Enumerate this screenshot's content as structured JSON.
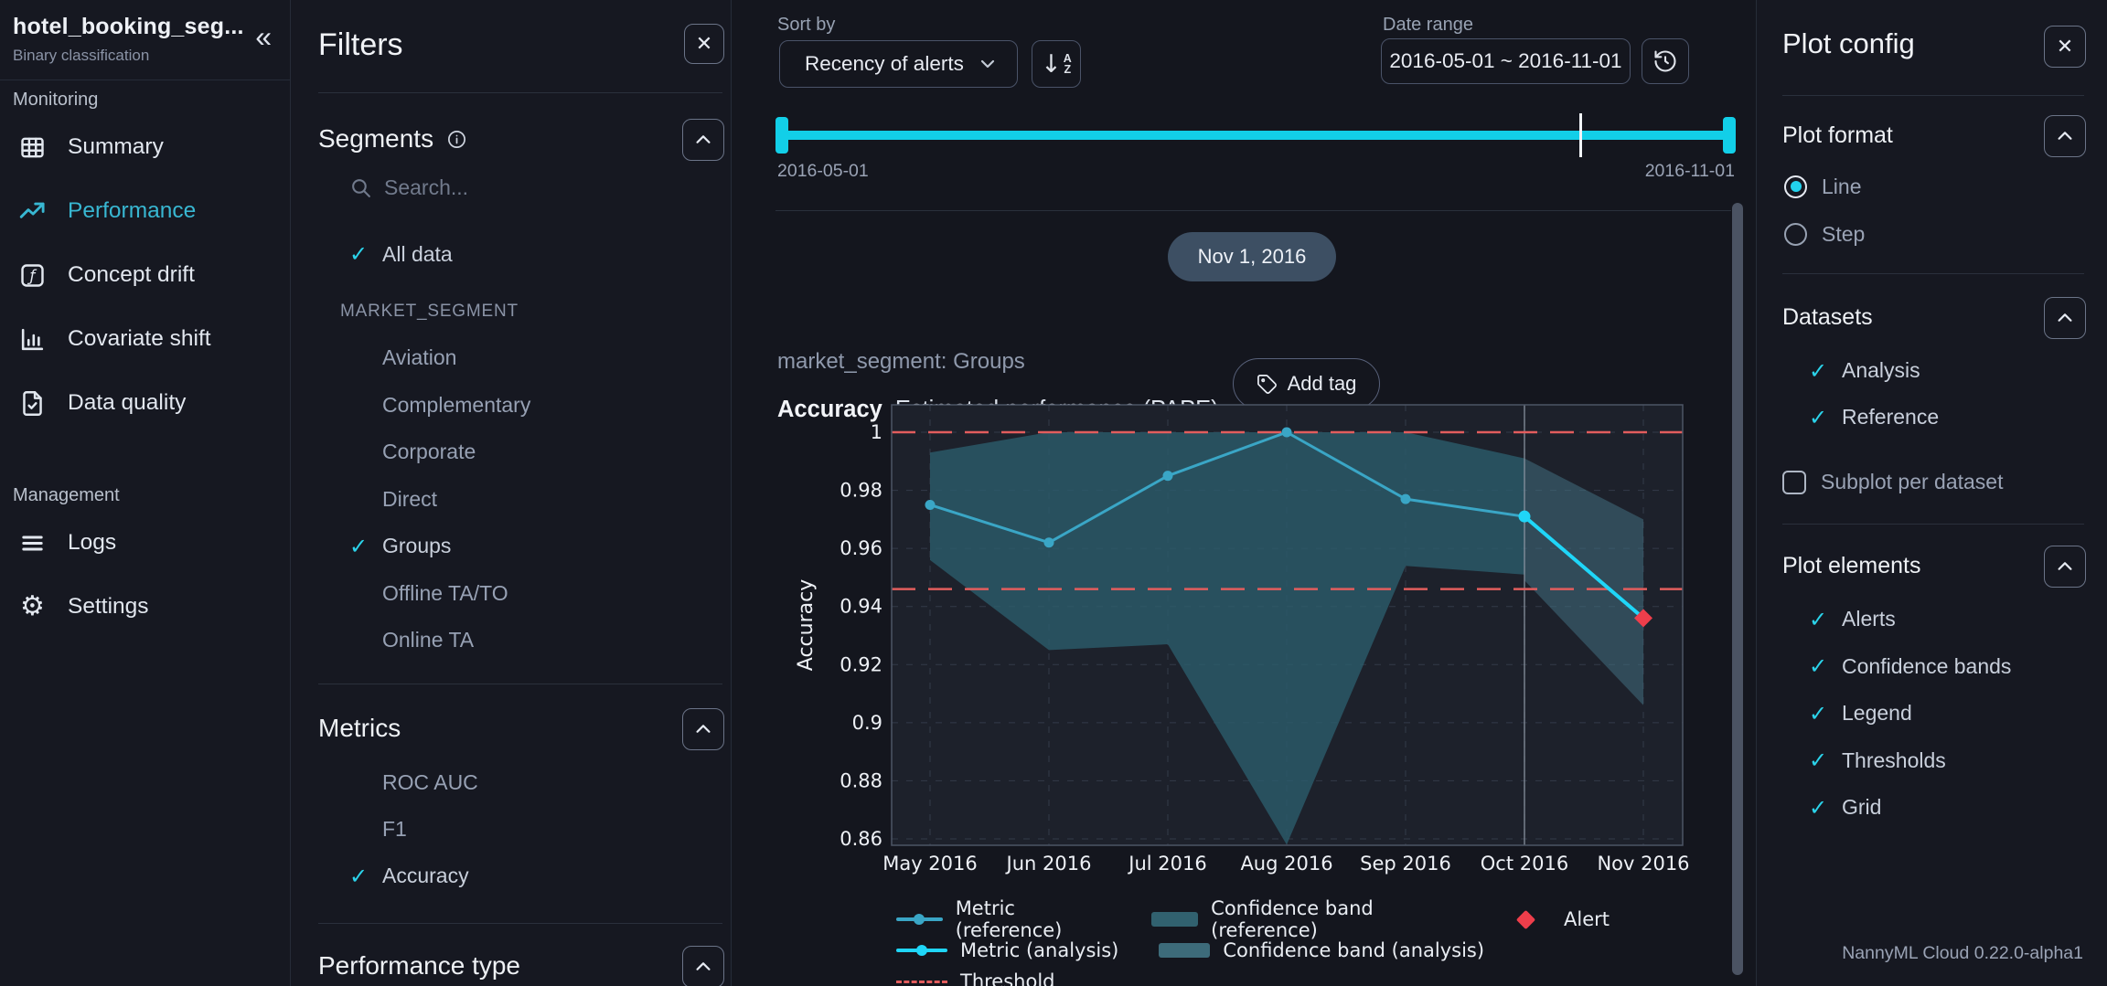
{
  "icons": {
    "close": "✕",
    "collapse_sidebar": "«",
    "check": "✓",
    "gear": "⚙",
    "sort_arrow": "↓",
    "sort_top": "A",
    "sort_bottom": "Z"
  },
  "sidebar": {
    "model_name": "hotel_booking_seg...",
    "model_type": "Binary classification",
    "sections": [
      {
        "label": "Monitoring",
        "items": [
          {
            "label": "Summary",
            "icon": "table-icon",
            "active": false
          },
          {
            "label": "Performance",
            "icon": "trend-up-icon",
            "active": true
          },
          {
            "label": "Concept drift",
            "icon": "function-icon",
            "active": false
          },
          {
            "label": "Covariate shift",
            "icon": "bar-chart-icon",
            "active": false
          },
          {
            "label": "Data quality",
            "icon": "document-check-icon",
            "active": false
          }
        ]
      },
      {
        "label": "Management",
        "items": [
          {
            "label": "Logs",
            "icon": "list-lines-icon",
            "active": false
          },
          {
            "label": "Settings",
            "icon": "gear-icon",
            "active": false
          }
        ]
      }
    ]
  },
  "filters": {
    "title": "Filters",
    "segments": {
      "heading": "Segments",
      "search_placeholder": "Search...",
      "all_data_label": "All data",
      "all_data_checked": true,
      "group_label": "MARKET_SEGMENT",
      "options": [
        {
          "label": "Aviation",
          "checked": false
        },
        {
          "label": "Complementary",
          "checked": false
        },
        {
          "label": "Corporate",
          "checked": false
        },
        {
          "label": "Direct",
          "checked": false
        },
        {
          "label": "Groups",
          "checked": true
        },
        {
          "label": "Offline TA/TO",
          "checked": false
        },
        {
          "label": "Online TA",
          "checked": false
        }
      ]
    },
    "metrics": {
      "heading": "Metrics",
      "options": [
        {
          "label": "ROC AUC",
          "checked": false
        },
        {
          "label": "F1",
          "checked": false
        },
        {
          "label": "Accuracy",
          "checked": true
        }
      ]
    },
    "performance_type_heading": "Performance type"
  },
  "toolbar": {
    "sort_by_label": "Sort by",
    "sort_value": "Recency of alerts",
    "date_range_label": "Date range",
    "date_range_value": "2016-05-01 ~ 2016-11-01",
    "slider_start_label": "2016-05-01",
    "slider_end_label": "2016-11-01"
  },
  "plot_card": {
    "date_badge": "Nov 1, 2016",
    "segment_label": "market_segment: Groups",
    "metric_name": "Accuracy",
    "metric_subtitle": "Estimated performance (PAPE)",
    "add_tag_label": "Add tag"
  },
  "chart_data": {
    "type": "line",
    "ylabel": "Accuracy",
    "x_ticklabels": [
      "May 2016",
      "Jun 2016",
      "Jul 2016",
      "Aug 2016",
      "Sep 2016",
      "Oct 2016",
      "Nov 2016"
    ],
    "y_ticks": [
      1,
      0.98,
      0.96,
      0.94,
      0.92,
      0.9,
      0.88,
      0.86
    ],
    "ylim": [
      0.857,
      1.009
    ],
    "grid": true,
    "reference_analysis_split_index": 5,
    "series": [
      {
        "name": "Metric (reference)",
        "x": [
          0,
          1,
          2,
          3,
          4,
          5
        ],
        "values": [
          0.975,
          0.962,
          0.985,
          1.0,
          0.977,
          0.971
        ],
        "color": "#3aa6c6"
      },
      {
        "name": "Metric (analysis)",
        "x": [
          5,
          6
        ],
        "values": [
          0.971,
          0.936
        ],
        "color": "#1fd6f8"
      }
    ],
    "bands": [
      {
        "name": "Confidence band (reference)",
        "x": [
          0,
          1,
          2,
          3,
          4,
          5
        ],
        "upper": [
          0.993,
          1.0,
          1.0,
          1.0,
          1.0,
          0.991
        ],
        "lower": [
          0.956,
          0.925,
          0.927,
          0.858,
          0.954,
          0.951
        ],
        "color": "#2c5d6b",
        "opacity": 0.8
      },
      {
        "name": "Confidence band (analysis)",
        "x": [
          5,
          6
        ],
        "upper": [
          0.991,
          0.97
        ],
        "lower": [
          0.949,
          0.906
        ],
        "color": "#41707f",
        "opacity": 0.55
      }
    ],
    "thresholds": [
      1.0,
      0.946
    ],
    "threshold_color": "#e25d5d",
    "alerts": [
      {
        "x": 6,
        "value": 0.936
      }
    ],
    "alert_color": "#ee3e4b",
    "legend": [
      {
        "label": "Metric (reference)",
        "kind": "line",
        "color": "#3aa6c6",
        "row": 0
      },
      {
        "label": "Confidence band (reference)",
        "kind": "band",
        "color": "#31616f",
        "row": 0
      },
      {
        "label": "Alert",
        "kind": "alert",
        "color": "#ee3e4b",
        "row": 0
      },
      {
        "label": "Metric (analysis)",
        "kind": "line",
        "color": "#1fd6f8",
        "row": 1
      },
      {
        "label": "Confidence band (analysis)",
        "kind": "band",
        "color": "#3d6b7a",
        "row": 1
      },
      {
        "label": "Threshold",
        "kind": "threshold",
        "color": "#e25d5d",
        "row": 2
      }
    ]
  },
  "plot_config": {
    "title": "Plot config",
    "plot_format": {
      "heading": "Plot format",
      "options": [
        {
          "label": "Line",
          "selected": true
        },
        {
          "label": "Step",
          "selected": false
        }
      ]
    },
    "datasets": {
      "heading": "Datasets",
      "options": [
        {
          "label": "Analysis",
          "checked": true
        },
        {
          "label": "Reference",
          "checked": true
        }
      ],
      "subplot_label": "Subplot per dataset",
      "subplot_checked": false
    },
    "plot_elements": {
      "heading": "Plot elements",
      "options": [
        {
          "label": "Alerts",
          "checked": true
        },
        {
          "label": "Confidence bands",
          "checked": true
        },
        {
          "label": "Legend",
          "checked": true
        },
        {
          "label": "Thresholds",
          "checked": true
        },
        {
          "label": "Grid",
          "checked": true
        }
      ]
    },
    "footer": "NannyML Cloud 0.22.0-alpha1"
  }
}
